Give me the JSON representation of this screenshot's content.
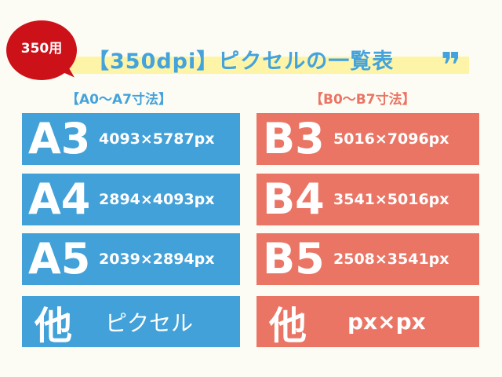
{
  "badge": "350用",
  "title": "【350dpi】ピクセルの一覧表",
  "quote_mark": "❞",
  "colors": {
    "a_series": "#42a1d8",
    "b_series": "#ea7565",
    "badge": "#cc1119",
    "highlight": "#fdf4a8"
  },
  "a_section": {
    "heading": "【A0～A7寸法】",
    "rows": [
      {
        "size": "A3",
        "px": "4093×5787px"
      },
      {
        "size": "A4",
        "px": "2894×4093px"
      },
      {
        "size": "A5",
        "px": "2039×2894px"
      },
      {
        "size": "他",
        "px": "ピクセル"
      }
    ]
  },
  "b_section": {
    "heading": "【B0～B7寸法】",
    "rows": [
      {
        "size": "B3",
        "px": "5016×7096px"
      },
      {
        "size": "B4",
        "px": "3541×5016px"
      },
      {
        "size": "B5",
        "px": "2508×3541px"
      },
      {
        "size": "他",
        "px": "px×px"
      }
    ]
  }
}
